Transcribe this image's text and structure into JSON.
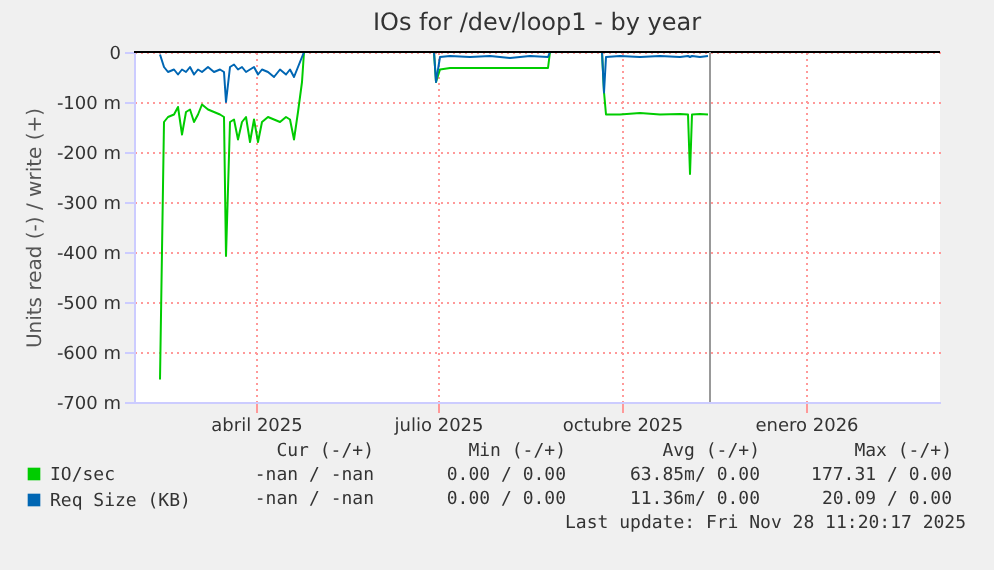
{
  "chart_data": {
    "type": "line",
    "title": "IOs for /dev/loop1 - by year",
    "ylabel": "Units read (-) / write (+)",
    "x": [
      "2025-02-26",
      "2025-02-28",
      "2025-03-02",
      "2025-03-05",
      "2025-03-07",
      "2025-03-09",
      "2025-03-11",
      "2025-03-13",
      "2025-03-15",
      "2025-03-17",
      "2025-03-19",
      "2025-03-22",
      "2025-03-25",
      "2025-03-28",
      "2025-03-30",
      "2025-03-31",
      "2025-04-02",
      "2025-04-04",
      "2025-04-06",
      "2025-04-08",
      "2025-04-10",
      "2025-04-12",
      "2025-04-14",
      "2025-04-16",
      "2025-04-18",
      "2025-04-21",
      "2025-04-24",
      "2025-04-27",
      "2025-04-30",
      "2025-05-02",
      "2025-05-04",
      "2025-05-06",
      "2025-05-08",
      "2025-05-09",
      "2025-06-01",
      "2025-07-13",
      "2025-07-14",
      "2025-07-16",
      "2025-07-21",
      "2025-07-31",
      "2025-08-10",
      "2025-08-20",
      "2025-08-30",
      "2025-09-08",
      "2025-09-09",
      "2025-09-20",
      "2025-10-05",
      "2025-10-06",
      "2025-10-07",
      "2025-10-14",
      "2025-10-24",
      "2025-11-03",
      "2025-11-13",
      "2025-11-17",
      "2025-11-18",
      "2025-11-19",
      "2025-11-23",
      "2025-11-27"
    ],
    "series": [
      {
        "name": "IO/sec",
        "color": "#00cc00",
        "values": [
          -655,
          -140,
          -130,
          -125,
          -110,
          -165,
          -120,
          -115,
          -140,
          -125,
          -105,
          -115,
          -120,
          -125,
          -130,
          -408,
          -140,
          -135,
          -175,
          -140,
          -130,
          -180,
          -135,
          -180,
          -140,
          -130,
          -135,
          -140,
          -130,
          -135,
          -175,
          -120,
          -60,
          0,
          null,
          0,
          -60,
          -35,
          -32,
          -32,
          -32,
          -32,
          -32,
          -32,
          0,
          null,
          0,
          -80,
          -125,
          -125,
          -122,
          -125,
          -124,
          -125,
          -244,
          -125,
          -124,
          -125
        ]
      },
      {
        "name": "Req Size (KB)",
        "color": "#0066b3",
        "values": [
          -5,
          -30,
          -40,
          -35,
          -45,
          -35,
          -40,
          -30,
          -45,
          -35,
          -40,
          -30,
          -40,
          -35,
          -40,
          -100,
          -30,
          -25,
          -35,
          -30,
          -40,
          -35,
          -30,
          -45,
          -35,
          -40,
          -50,
          -35,
          -45,
          -35,
          -50,
          -30,
          -10,
          0,
          null,
          0,
          -60,
          -10,
          -8,
          -10,
          -8,
          -12,
          -8,
          -10,
          0,
          null,
          0,
          -81,
          -10,
          -8,
          -10,
          -8,
          -10,
          -8,
          -10,
          -8,
          -10,
          -8
        ]
      }
    ],
    "xlim": [
      "2025-02-13",
      "2026-03-23"
    ],
    "xticks": [
      {
        "value": "2025-04-15",
        "label": "abril 2025"
      },
      {
        "value": "2025-07-15",
        "label": "julio 2025"
      },
      {
        "value": "2025-10-15",
        "label": "octubre 2025"
      },
      {
        "value": "2026-01-15",
        "label": "enero 2026"
      }
    ],
    "ylim": [
      -700,
      0
    ],
    "yticks": [
      0,
      {
        "value": -100,
        "label": "-100 m"
      },
      {
        "value": -200,
        "label": "-200 m"
      },
      {
        "value": -300,
        "label": "-300 m"
      },
      {
        "value": -400,
        "label": "-400 m"
      },
      {
        "value": -500,
        "label": "-500 m"
      },
      {
        "value": -600,
        "label": "-600 m"
      },
      {
        "value": -700,
        "label": "-700 m"
      }
    ],
    "ref_lines": [
      {
        "axis": "y",
        "value": 0,
        "color": "#000000"
      },
      {
        "axis": "x",
        "value": "2025-11-28",
        "color": "#999999"
      }
    ],
    "grid": true,
    "legend": "bottom",
    "marker": "none",
    "line_style": "solid",
    "annotations": [
      "Cur (-/+)",
      "Min (-/+)",
      "Avg (-/+)",
      "Max (-/+)",
      "-nan / -nan",
      "0.00 / 0.00",
      "63.85m/ 0.00",
      "177.31 / 0.00",
      "-nan / -nan",
      "0.00 / 0.00",
      "11.36m/ 0.00",
      "20.09 / 0.00",
      "Last update: Fri Nov 28 11:20:17 2025"
    ]
  }
}
